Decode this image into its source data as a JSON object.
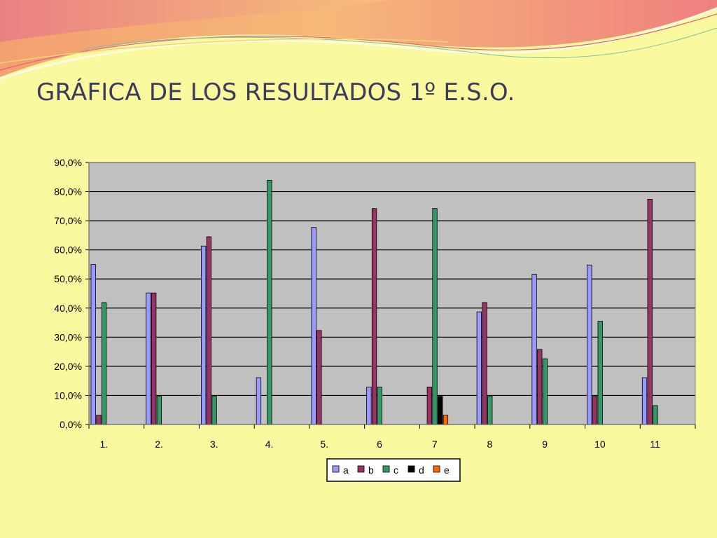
{
  "title": "GRÁFICA DE LOS RESULTADOS 1º E.S.O.",
  "colors": {
    "background": "#fbf99f",
    "plot_area": "#c0c0c0",
    "a": "#9999ff",
    "b": "#993366",
    "c": "#339966",
    "d": "#000000",
    "e": "#ff6600"
  },
  "chart_data": {
    "type": "bar",
    "title": "",
    "xlabel": "",
    "ylabel": "",
    "ylim": [
      0,
      90
    ],
    "y_ticks": [
      0,
      10,
      20,
      30,
      40,
      50,
      60,
      70,
      80,
      90
    ],
    "y_tick_labels": [
      "0,0%",
      "10,0%",
      "20,0%",
      "30,0%",
      "40,0%",
      "50,0%",
      "60,0%",
      "70,0%",
      "80,0%",
      "90,0%"
    ],
    "grid": true,
    "legend_position": "bottom",
    "categories": [
      "1.",
      "2.",
      "3.",
      "4.",
      "5.",
      "6",
      "7",
      "8",
      "9",
      "10",
      "11"
    ],
    "series": [
      {
        "name": "a",
        "color": "#9999ff",
        "values": [
          55.0,
          45.2,
          61.3,
          16.1,
          67.7,
          12.9,
          0,
          38.7,
          51.6,
          54.8,
          16.1
        ]
      },
      {
        "name": "b",
        "color": "#993366",
        "values": [
          3.2,
          45.2,
          64.5,
          0,
          32.3,
          74.2,
          12.9,
          41.9,
          25.8,
          9.7,
          77.4
        ]
      },
      {
        "name": "c",
        "color": "#339966",
        "values": [
          41.9,
          9.7,
          9.7,
          83.9,
          0,
          12.9,
          74.2,
          9.7,
          22.6,
          35.5,
          6.5
        ]
      },
      {
        "name": "d",
        "color": "#000000",
        "values": [
          0,
          0,
          0,
          0,
          0,
          0,
          9.7,
          0,
          0,
          0,
          0
        ]
      },
      {
        "name": "e",
        "color": "#ff6600",
        "values": [
          0,
          0,
          0,
          0,
          0,
          0,
          3.2,
          0,
          0,
          0,
          0
        ]
      }
    ]
  }
}
